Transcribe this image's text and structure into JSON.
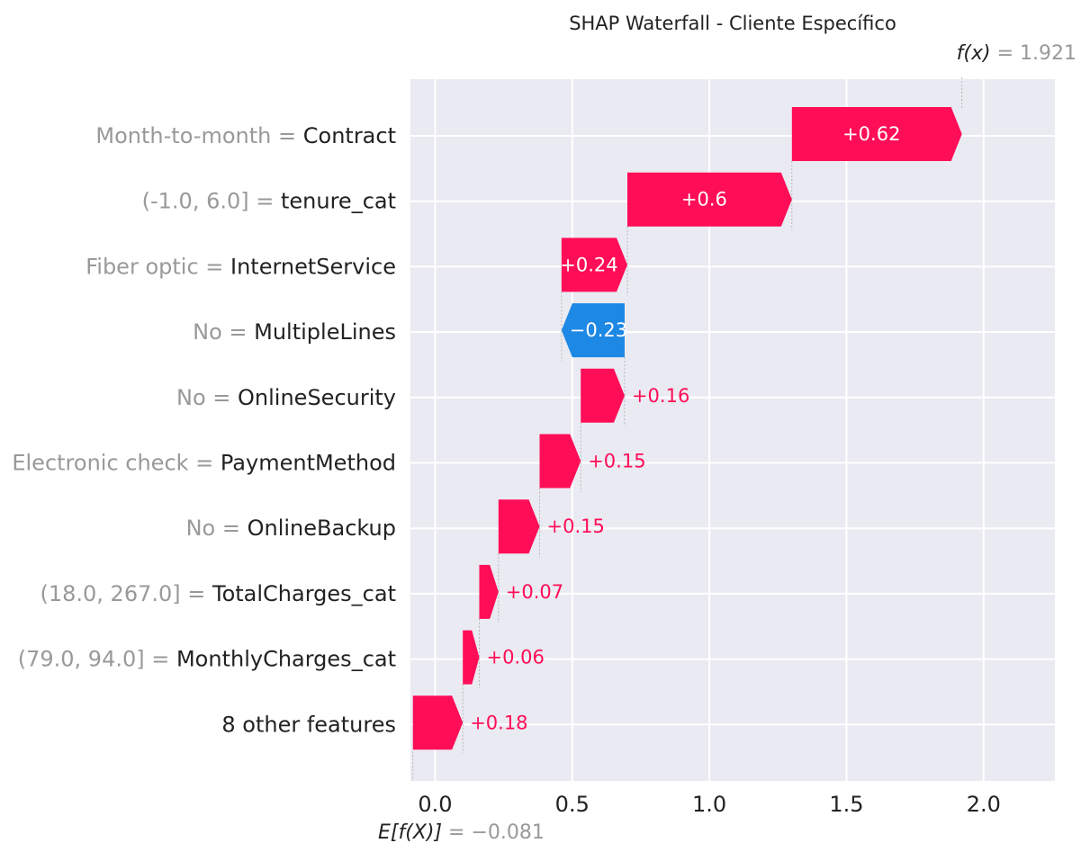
{
  "chart_data": {
    "type": "bar",
    "subtype": "waterfall",
    "title": "SHAP Waterfall - Cliente Específico",
    "fx_label": "f(x)",
    "fx_value": 1.921,
    "fx_text": "1.921",
    "base_label": "E[f(X)]",
    "base_value": -0.081,
    "base_text": "−0.081",
    "xlim": [
      -0.09,
      2.26
    ],
    "xticks": [
      0.0,
      0.5,
      1.0,
      1.5,
      2.0
    ],
    "xtick_labels": [
      "0.0",
      "0.5",
      "1.0",
      "1.5",
      "2.0"
    ],
    "grid": true,
    "colors": {
      "positive": "#ff0d57",
      "negative": "#1e88e5",
      "background": "#eaeaf2",
      "grid": "#ffffff",
      "feature_value_text": "#999999",
      "feature_name_text": "#222222"
    },
    "rows": [
      {
        "feature_value": "Month-to-month",
        "feature": "Contract",
        "value": 0.62,
        "label": "+0.62",
        "start": 1.301,
        "end": 1.921
      },
      {
        "feature_value": "(-1.0, 6.0]",
        "feature": "tenure_cat",
        "value": 0.6,
        "label": "+0.6",
        "start": 0.701,
        "end": 1.301
      },
      {
        "feature_value": "Fiber optic",
        "feature": "InternetService",
        "value": 0.24,
        "label": "+0.24",
        "start": 0.461,
        "end": 0.701
      },
      {
        "feature_value": "No",
        "feature": "MultipleLines",
        "value": -0.23,
        "label": "−0.23",
        "start": 0.691,
        "end": 0.461
      },
      {
        "feature_value": "No",
        "feature": "OnlineSecurity",
        "value": 0.16,
        "label": "+0.16",
        "start": 0.531,
        "end": 0.691
      },
      {
        "feature_value": "Electronic check",
        "feature": "PaymentMethod",
        "value": 0.15,
        "label": "+0.15",
        "start": 0.381,
        "end": 0.531
      },
      {
        "feature_value": "No",
        "feature": "OnlineBackup",
        "value": 0.15,
        "label": "+0.15",
        "start": 0.231,
        "end": 0.381
      },
      {
        "feature_value": "(18.0, 267.0]",
        "feature": "TotalCharges_cat",
        "value": 0.07,
        "label": "+0.07",
        "start": 0.161,
        "end": 0.231
      },
      {
        "feature_value": "(79.0, 94.0]",
        "feature": "MonthlyCharges_cat",
        "value": 0.06,
        "label": "+0.06",
        "start": 0.101,
        "end": 0.161
      },
      {
        "feature_value": "",
        "feature": "8 other features",
        "value": 0.18,
        "label": "+0.18",
        "start": -0.081,
        "end": 0.101
      }
    ]
  }
}
